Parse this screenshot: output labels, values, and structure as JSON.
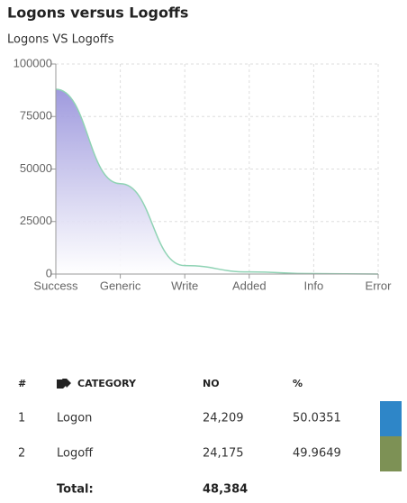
{
  "chart_data": {
    "type": "area",
    "title": "Logons versus Logoffs",
    "subtitle": "Logons VS Logoffs",
    "categories": [
      "Success",
      "Generic",
      "Write",
      "Added",
      "Info",
      "Error"
    ],
    "values": [
      88000,
      43000,
      4000,
      1000,
      200,
      0
    ],
    "color": "#8fd3b4",
    "fill_color": "#9a95dc",
    "ylim": [
      0,
      100000
    ],
    "yticks": [
      0,
      25000,
      50000,
      75000,
      100000
    ],
    "grid": true
  },
  "table": {
    "headers": [
      "#",
      "CATEGORY",
      "NO",
      "%"
    ],
    "rows": [
      [
        "1",
        "Logon",
        "24,209",
        "50.0351"
      ],
      [
        "2",
        "Logoff",
        "24,175",
        "49.9649"
      ]
    ],
    "row_colors": [
      "#2e86c8",
      "#7d9155"
    ],
    "total_label": "Total:",
    "total": "48,384"
  }
}
